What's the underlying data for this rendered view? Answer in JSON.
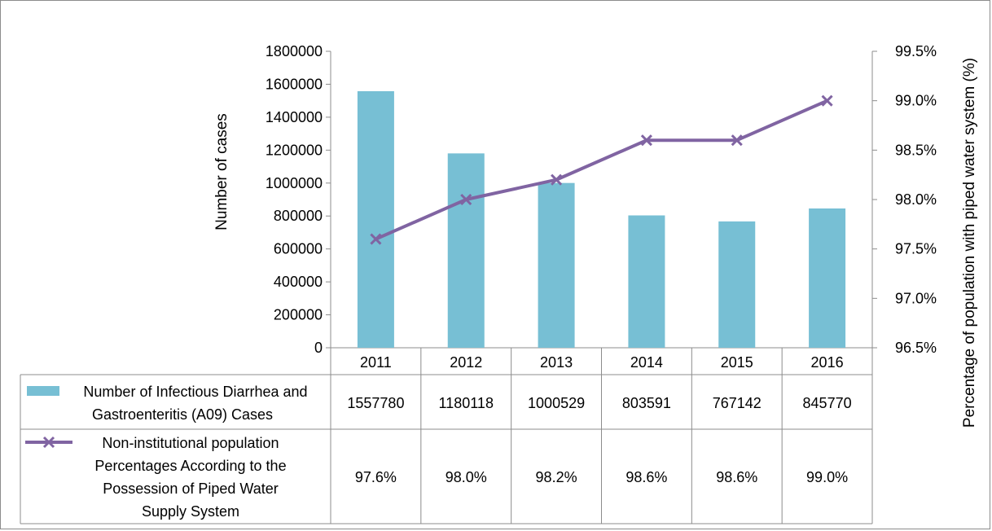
{
  "chart_data": {
    "type": "bar",
    "title": "",
    "categories": [
      "2011",
      "2012",
      "2013",
      "2014",
      "2015",
      "2016"
    ],
    "ylabel": "Number of cases",
    "ylabel_right": "Percentage of population with piped water system (%)",
    "ylim": [
      0,
      1800000
    ],
    "y_ticks": [
      "0",
      "200000",
      "400000",
      "600000",
      "800000",
      "1000000",
      "1200000",
      "1400000",
      "1600000",
      "1800000"
    ],
    "ylim_right": [
      96.5,
      99.5
    ],
    "y_ticks_right": [
      "96.5%",
      "97.0%",
      "97.5%",
      "98.0%",
      "98.5%",
      "99.0%",
      "99.5%"
    ],
    "grid": false,
    "legend": "data-table-below",
    "series": [
      {
        "name": "Number of Infectious Diarrhea and Gastroenteritis (A09) Cases",
        "type": "bar",
        "axis": "left",
        "color": "#77bfd4",
        "values": [
          1557780,
          1180118,
          1000529,
          803591,
          767142,
          845770
        ],
        "labels": [
          "1557780",
          "1180118",
          "1000529",
          "803591",
          "767142",
          "845770"
        ]
      },
      {
        "name": "Non-institutional population Percentages According to the Possession of Piped Water Supply System",
        "type": "line",
        "axis": "right",
        "color": "#8064a2",
        "marker": "x",
        "values": [
          97.6,
          98.0,
          98.2,
          98.6,
          98.6,
          99.0
        ],
        "labels": [
          "97.6%",
          "98.0%",
          "98.2%",
          "98.6%",
          "98.6%",
          "99.0%"
        ]
      }
    ]
  }
}
